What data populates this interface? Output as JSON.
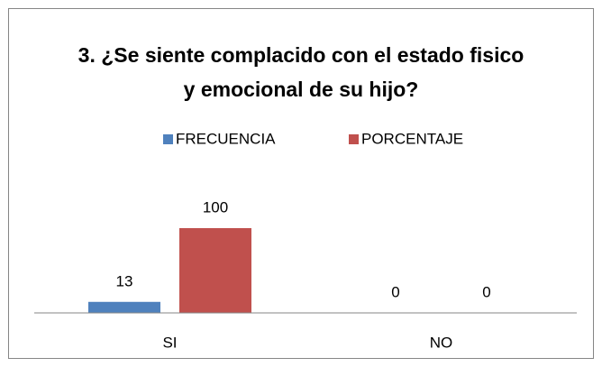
{
  "chart_data": {
    "type": "bar",
    "title": "3. ¿Se siente complacido con el estado fisico y emocional de su hijo?",
    "categories": [
      "SI",
      "NO"
    ],
    "series": [
      {
        "name": "FRECUENCIA",
        "color": "#4f81bd",
        "values": [
          13,
          0
        ]
      },
      {
        "name": "PORCENTAJE",
        "color": "#c0504d",
        "values": [
          100,
          0
        ]
      }
    ],
    "legend": "top"
  }
}
